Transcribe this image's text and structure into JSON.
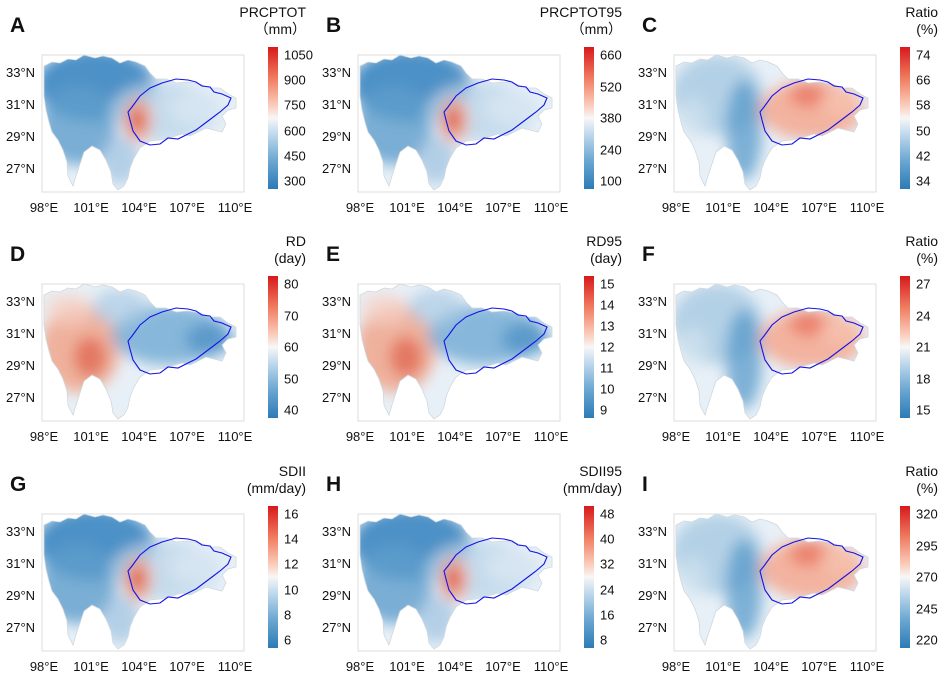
{
  "lat_labels": [
    "33°N",
    "31°N",
    "29°N",
    "27°N"
  ],
  "lon_labels": [
    "98°E",
    "101°E",
    "104°E",
    "107°E",
    "110°E"
  ],
  "colors": {
    "region_outline": "#1414e6",
    "low": "#2c7bb6",
    "high": "#d7191c"
  },
  "panels": [
    {
      "letter": "A",
      "title": [
        "PRCPTOT",
        "（mm）"
      ],
      "ticks": [
        "1050",
        "900",
        "750",
        "600",
        "450",
        "300"
      ],
      "pattern": "hotspot"
    },
    {
      "letter": "B",
      "title": [
        "PRCPTOT95",
        "（mm）"
      ],
      "ticks": [
        "660",
        "520",
        "380",
        "240",
        "100"
      ],
      "pattern": "hotspot"
    },
    {
      "letter": "C",
      "title": [
        "Ratio",
        "(%)"
      ],
      "ticks": [
        "74",
        "66",
        "58",
        "50",
        "42",
        "34"
      ],
      "pattern": "east-warm"
    },
    {
      "letter": "D",
      "title": [
        "RD",
        "(day)"
      ],
      "ticks": [
        "80",
        "70",
        "60",
        "50",
        "40"
      ],
      "pattern": "southwest-warm"
    },
    {
      "letter": "E",
      "title": [
        "RD95",
        "(day)"
      ],
      "ticks": [
        "15",
        "14",
        "13",
        "12",
        "11",
        "10",
        "9"
      ],
      "pattern": "southwest-warm"
    },
    {
      "letter": "F",
      "title": [
        "Ratio",
        "(%)"
      ],
      "ticks": [
        "27",
        "24",
        "21",
        "18",
        "15"
      ],
      "pattern": "east-warm"
    },
    {
      "letter": "G",
      "title": [
        "SDII",
        "(mm/day)"
      ],
      "ticks": [
        "16",
        "14",
        "12",
        "10",
        "8",
        "6"
      ],
      "pattern": "hotspot"
    },
    {
      "letter": "H",
      "title": [
        "SDII95",
        "(mm/day)"
      ],
      "ticks": [
        "48",
        "40",
        "32",
        "24",
        "16",
        "8"
      ],
      "pattern": "hotspot"
    },
    {
      "letter": "I",
      "title": [
        "Ratio",
        "(%)"
      ],
      "ticks": [
        "320",
        "295",
        "270",
        "245",
        "220"
      ],
      "pattern": "east-warm"
    }
  ]
}
